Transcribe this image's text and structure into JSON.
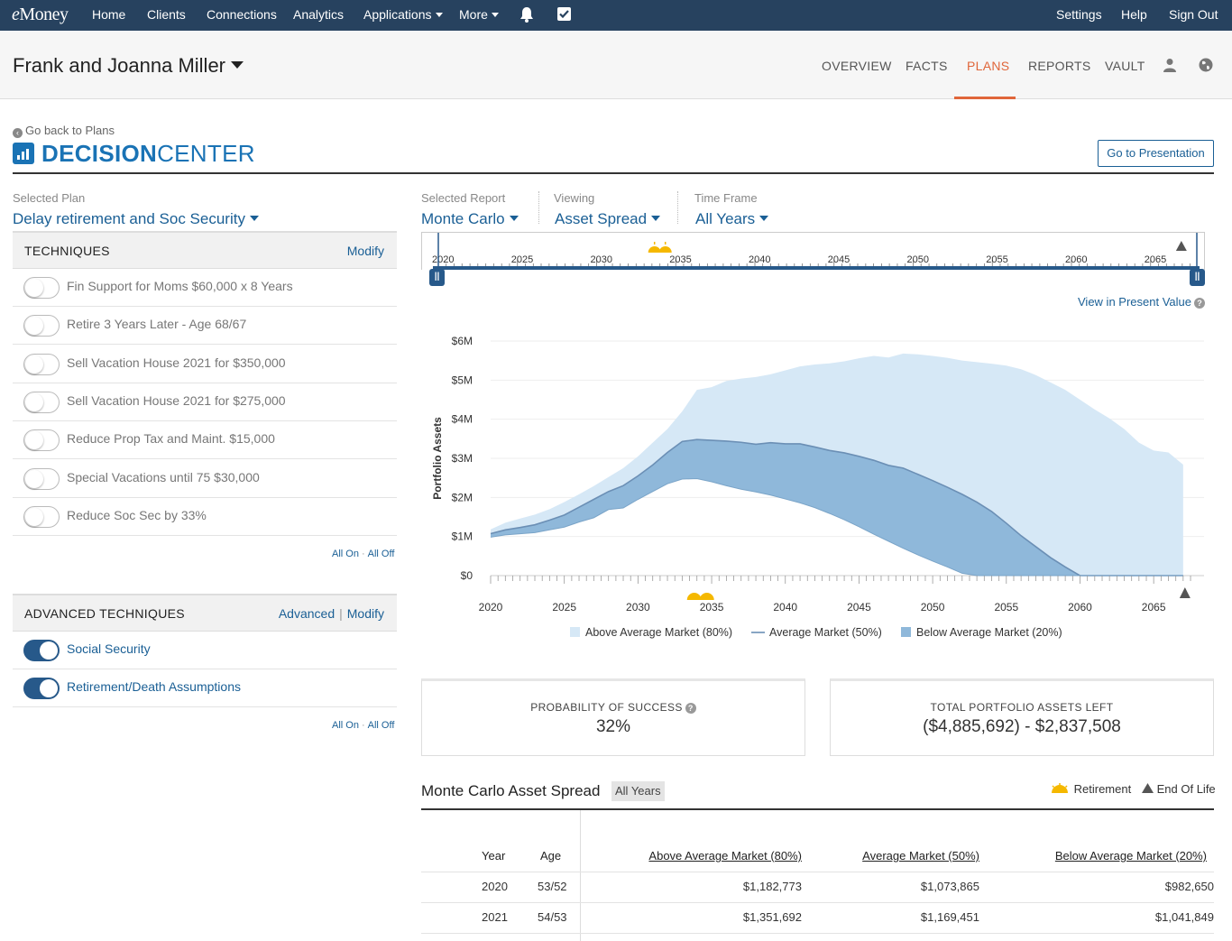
{
  "topnav": {
    "logo": "eMoney",
    "items": [
      "Home",
      "Clients",
      "Connections",
      "Analytics",
      "Applications",
      "More"
    ],
    "right": [
      "Settings",
      "Help",
      "Sign Out"
    ],
    "icons": [
      "bell-icon",
      "checkbox-icon"
    ]
  },
  "client": {
    "name": "Frank and Joanna Miller",
    "tabs": [
      "OVERVIEW",
      "FACTS",
      "PLANS",
      "REPORTS",
      "VAULT"
    ],
    "active_tab": "PLANS"
  },
  "decision_center": {
    "back_link": "Go back to Plans",
    "title_bold": "DECISION",
    "title_light": "CENTER",
    "presentation_button": "Go to Presentation"
  },
  "plan": {
    "label": "Selected Plan",
    "value": "Delay retirement and Soc Security"
  },
  "techniques": {
    "header": "TECHNIQUES",
    "modify": "Modify",
    "items": [
      {
        "label": "Fin Support for Moms $60,000 x 8 Years",
        "on": false
      },
      {
        "label": "Retire 3 Years Later - Age 68/67",
        "on": false
      },
      {
        "label": "Sell Vacation House 2021 for $350,000",
        "on": false
      },
      {
        "label": "Sell Vacation House 2021 for $275,000",
        "on": false
      },
      {
        "label": "Reduce Prop Tax and Maint. $15,000",
        "on": false
      },
      {
        "label": "Special Vacations until 75 $30,000",
        "on": false
      },
      {
        "label": "Reduce Soc Sec by 33%",
        "on": false
      }
    ],
    "all_on": "All On",
    "all_off": "All Off"
  },
  "advanced": {
    "header": "ADVANCED TECHNIQUES",
    "advanced_link": "Advanced",
    "modify": "Modify",
    "items": [
      {
        "label": "Social Security",
        "on": true
      },
      {
        "label": "Retirement/Death Assumptions",
        "on": true
      }
    ],
    "all_on": "All On",
    "all_off": "All Off"
  },
  "report": {
    "selected_report_label": "Selected Report",
    "selected_report": "Monte Carlo",
    "viewing_label": "Viewing",
    "viewing": "Asset Spread",
    "timeframe_label": "Time Frame",
    "timeframe": "All Years",
    "timeline_years": [
      "2020",
      "2025",
      "2030",
      "2035",
      "2040",
      "2045",
      "2050",
      "2055",
      "2060",
      "2065"
    ],
    "present_value_link": "View in Present Value"
  },
  "chart_data": {
    "type": "area",
    "ylabel": "Portfolio Assets",
    "y_ticks": [
      "$0",
      "$1M",
      "$2M",
      "$3M",
      "$4M",
      "$5M",
      "$6M"
    ],
    "ylim": [
      0,
      6000000
    ],
    "x_ticks": [
      "2020",
      "2025",
      "2030",
      "2035",
      "2040",
      "2045",
      "2050",
      "2055",
      "2060",
      "2065"
    ],
    "xlim": [
      2020,
      2068
    ],
    "retirement_year": 2034,
    "end_of_life_year": 2067,
    "x": [
      2020,
      2021,
      2022,
      2023,
      2024,
      2025,
      2026,
      2027,
      2028,
      2029,
      2030,
      2031,
      2032,
      2033,
      2034,
      2035,
      2036,
      2037,
      2038,
      2039,
      2040,
      2041,
      2042,
      2043,
      2044,
      2045,
      2046,
      2047,
      2048,
      2049,
      2050,
      2051,
      2052,
      2053,
      2054,
      2055,
      2056,
      2057,
      2058,
      2059,
      2060,
      2061,
      2062,
      2063,
      2064,
      2065,
      2066,
      2067
    ],
    "series": [
      {
        "name": "Above Average Market (80%)",
        "color": "#d6e8f6",
        "values": [
          1182773,
          1351692,
          1460000,
          1560000,
          1700000,
          1880000,
          2080000,
          2290000,
          2520000,
          2750000,
          3050000,
          3400000,
          3750000,
          4200000,
          4750000,
          4820000,
          4980000,
          5040000,
          5080000,
          5150000,
          5250000,
          5350000,
          5400000,
          5430000,
          5480000,
          5560000,
          5620000,
          5580000,
          5680000,
          5660000,
          5620000,
          5570000,
          5500000,
          5460000,
          5420000,
          5370000,
          5280000,
          5130000,
          4940000,
          4750000,
          4500000,
          4250000,
          4020000,
          3750000,
          3400000,
          3200000,
          3150000,
          2837508
        ]
      },
      {
        "name": "Average Market (50%)",
        "color": "#6b8fb5",
        "values": [
          1073865,
          1169451,
          1230000,
          1300000,
          1420000,
          1550000,
          1750000,
          1950000,
          2150000,
          2300000,
          2550000,
          2830000,
          3150000,
          3430000,
          3480000,
          3460000,
          3440000,
          3410000,
          3360000,
          3400000,
          3370000,
          3370000,
          3290000,
          3200000,
          3140000,
          3050000,
          2950000,
          2820000,
          2750000,
          2590000,
          2430000,
          2260000,
          2080000,
          1880000,
          1640000,
          1340000,
          1020000,
          740000,
          460000,
          220000,
          0,
          0,
          0,
          0,
          0,
          0,
          0,
          0
        ]
      },
      {
        "name": "Below Average Market (20%)",
        "color": "#8fb8da",
        "values": [
          982650,
          1041849,
          1070000,
          1100000,
          1170000,
          1240000,
          1370000,
          1480000,
          1690000,
          1730000,
          1950000,
          2150000,
          2350000,
          2470000,
          2480000,
          2400000,
          2300000,
          2210000,
          2140000,
          2060000,
          1960000,
          1860000,
          1740000,
          1590000,
          1430000,
          1250000,
          1060000,
          880000,
          700000,
          530000,
          370000,
          220000,
          60000,
          0,
          0,
          0,
          0,
          0,
          0,
          0,
          0,
          0,
          0,
          0,
          0,
          0,
          0,
          0
        ]
      }
    ],
    "legend": [
      "Above Average Market (80%)",
      "Average Market (50%)",
      "Below Average Market (20%)"
    ]
  },
  "stats": {
    "probability_label": "PROBABILITY OF SUCCESS",
    "probability_value": "32%",
    "assets_left_label": "TOTAL PORTFOLIO ASSETS LEFT",
    "assets_left_value": "($4,885,692) - $2,837,508"
  },
  "table": {
    "title": "Monte Carlo Asset Spread",
    "badge": "All Years",
    "legend_retirement": "Retirement",
    "legend_eol": "End Of Life",
    "headers": [
      "Year",
      "Age",
      "Above Average Market (80%)",
      "Average Market (50%)",
      "Below Average Market (20%)"
    ],
    "rows": [
      [
        "2020",
        "53/52",
        "$1,182,773",
        "$1,073,865",
        "$982,650"
      ],
      [
        "2021",
        "54/53",
        "$1,351,692",
        "$1,169,451",
        "$1,041,849"
      ]
    ]
  }
}
